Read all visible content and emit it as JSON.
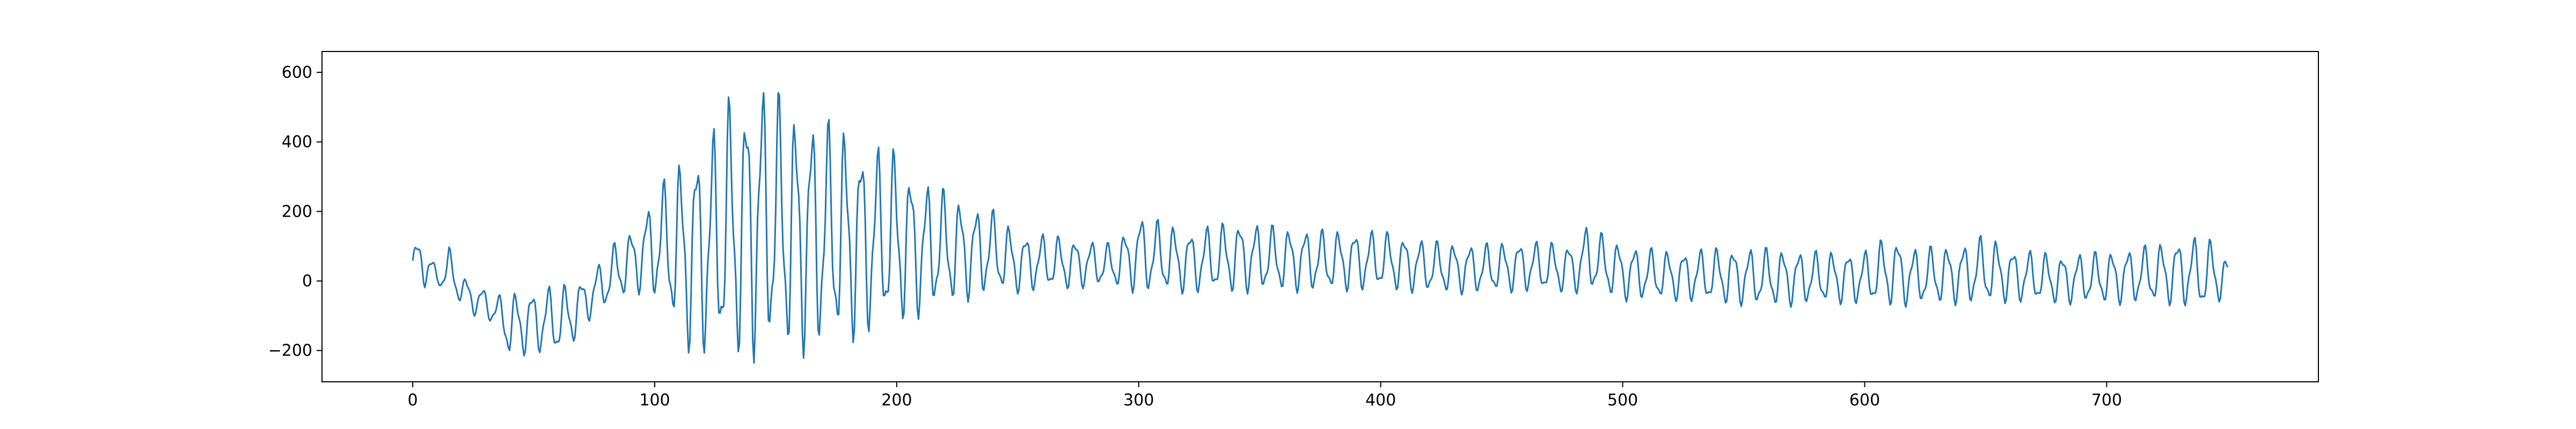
{
  "chart_data": {
    "type": "line",
    "title": "",
    "xlabel": "",
    "ylabel": "",
    "xlim": [
      -37.5,
      787.5
    ],
    "ylim": [
      -290,
      660
    ],
    "grid": false,
    "legend": "none",
    "x_ticks": [
      {
        "value": 0,
        "label": "0"
      },
      {
        "value": 100,
        "label": "100"
      },
      {
        "value": 200,
        "label": "200"
      },
      {
        "value": 300,
        "label": "300"
      },
      {
        "value": 400,
        "label": "400"
      },
      {
        "value": 500,
        "label": "500"
      },
      {
        "value": 600,
        "label": "600"
      },
      {
        "value": 700,
        "label": "700"
      }
    ],
    "y_ticks": [
      {
        "value": -200,
        "label": "−200"
      },
      {
        "value": 0,
        "label": "0"
      },
      {
        "value": 200,
        "label": "200"
      },
      {
        "value": 400,
        "label": "400"
      },
      {
        "value": 600,
        "label": "600"
      }
    ],
    "series": [
      {
        "color": "#1f77b4",
        "x": [
          0,
          5,
          10,
          15,
          20,
          25,
          30,
          35,
          40,
          45,
          50,
          55,
          60,
          65,
          70,
          75,
          80,
          85,
          90,
          95,
          100,
          105,
          110,
          115,
          120,
          125,
          130,
          135,
          140,
          145,
          150,
          155,
          160,
          165,
          170,
          175,
          180,
          185,
          190,
          195,
          200,
          205,
          210,
          215,
          220,
          225,
          230,
          235,
          240,
          250,
          260,
          270,
          280,
          290,
          300,
          320,
          340,
          360,
          380,
          400,
          420,
          440,
          460,
          480,
          485,
          500,
          520,
          540,
          560,
          580,
          600,
          610,
          620,
          640,
          650,
          660,
          680,
          700,
          720,
          735,
          740,
          745,
          750
        ],
        "y_max": [
          110,
          140,
          30,
          100,
          20,
          0,
          -20,
          -40,
          -30,
          -20,
          -20,
          -10,
          -10,
          0,
          10,
          40,
          80,
          130,
          150,
          200,
          260,
          310,
          360,
          390,
          430,
          460,
          555,
          500,
          620,
          590,
          565,
          540,
          500,
          500,
          480,
          470,
          450,
          420,
          400,
          400,
          390,
          340,
          300,
          290,
          270,
          250,
          230,
          220,
          210,
          140,
          140,
          130,
          120,
          110,
          200,
          150,
          180,
          160,
          150,
          150,
          120,
          110,
          120,
          110,
          165,
          110,
          90,
          100,
          100,
          90,
          90,
          140,
          100,
          110,
          140,
          100,
          80,
          90,
          110,
          135,
          120,
          130,
          60
        ],
        "y_min": [
          -10,
          -20,
          -20,
          -30,
          -70,
          -100,
          -110,
          -140,
          -230,
          -220,
          -210,
          -215,
          -220,
          -200,
          -140,
          -100,
          -80,
          -60,
          -40,
          -40,
          -60,
          -100,
          -180,
          -225,
          -230,
          -235,
          -238,
          -240,
          -245,
          -230,
          -225,
          -230,
          -225,
          -215,
          -210,
          -200,
          -190,
          -180,
          -160,
          -150,
          -140,
          -125,
          -110,
          -95,
          -80,
          -70,
          -60,
          -50,
          -40,
          -40,
          -30,
          -30,
          -20,
          -20,
          -40,
          -40,
          -40,
          -35,
          -35,
          -30,
          -40,
          -40,
          -35,
          -40,
          -30,
          -60,
          -60,
          -70,
          -80,
          -70,
          -70,
          -80,
          -75,
          -70,
          -75,
          -65,
          -70,
          -70,
          -70,
          -80,
          -90,
          -85,
          -30
        ]
      }
    ]
  }
}
